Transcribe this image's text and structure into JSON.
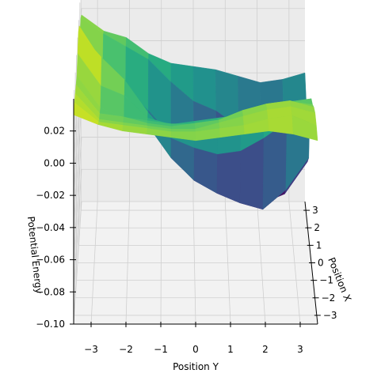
{
  "chart_data": {
    "type": "surface",
    "title": "",
    "xlabel": "Position X",
    "ylabel": "Position Y",
    "zlabel": "Potential Energy",
    "xlim": [
      -3.5,
      3.5
    ],
    "ylim": [
      -3.5,
      3.5
    ],
    "zlim": [
      -0.1,
      0.04
    ],
    "x_ticks": [
      -3,
      -2,
      -1,
      0,
      1,
      2,
      3
    ],
    "y_ticks": [
      -3,
      -2,
      -1,
      0,
      1,
      2,
      3
    ],
    "z_ticks": [
      0.02,
      0.0,
      -0.02,
      -0.04,
      -0.06,
      -0.08,
      -0.1
    ],
    "x_tick_labels": [
      "−3",
      "−2",
      "−1",
      "0",
      "1",
      "2",
      "3"
    ],
    "y_tick_labels": [
      "−3",
      "−2",
      "−1",
      "0",
      "1",
      "2",
      "3"
    ],
    "z_tick_labels": [
      "0.02",
      "0.00",
      "−0.02",
      "−0.04",
      "−0.06",
      "−0.08",
      "−0.10"
    ],
    "colormap": "viridis",
    "grid": true,
    "x": [
      -3.5,
      -2.8,
      -2.1,
      -1.4,
      -0.7,
      0.0,
      0.7,
      1.4,
      2.1,
      2.8,
      3.5
    ],
    "y": [
      -3.5,
      -2.8,
      -2.1,
      -1.4,
      -0.7,
      0.0,
      0.7,
      1.4,
      2.1,
      2.8,
      3.5
    ],
    "z": [
      [
        0.03,
        0.03,
        0.028,
        0.026,
        0.024,
        0.03,
        0.036,
        0.032,
        0.02,
        0.022,
        0.016
      ],
      [
        0.024,
        0.018,
        0.012,
        0.008,
        0.004,
        0.01,
        0.02,
        0.01,
        0.0,
        0.012,
        0.006
      ],
      [
        0.02,
        0.016,
        0.01,
        0.006,
        -0.002,
        0.004,
        0.006,
        -0.01,
        -0.014,
        0.004,
        0.002
      ],
      [
        0.018,
        0.014,
        0.008,
        0.002,
        -0.004,
        -0.01,
        -0.014,
        -0.03,
        -0.028,
        -0.004,
        -0.008
      ],
      [
        0.016,
        0.012,
        0.006,
        0.0,
        -0.006,
        -0.014,
        -0.03,
        -0.05,
        -0.044,
        -0.018,
        -0.014
      ],
      [
        0.014,
        0.012,
        0.006,
        0.002,
        -0.006,
        -0.012,
        -0.036,
        -0.064,
        -0.054,
        -0.03,
        -0.016
      ],
      [
        0.016,
        0.014,
        0.01,
        0.004,
        -0.004,
        -0.01,
        -0.04,
        -0.072,
        -0.06,
        -0.036,
        -0.018
      ],
      [
        0.018,
        0.016,
        0.014,
        0.01,
        0.0,
        -0.008,
        -0.038,
        -0.078,
        -0.072,
        -0.046,
        -0.022
      ],
      [
        0.02,
        0.02,
        0.018,
        0.014,
        0.004,
        -0.004,
        -0.03,
        -0.082,
        -0.086,
        -0.054,
        -0.026
      ],
      [
        0.018,
        0.022,
        0.02,
        0.016,
        0.008,
        0.0,
        -0.02,
        -0.07,
        -0.08,
        -0.046,
        -0.024
      ],
      [
        0.014,
        0.016,
        0.016,
        0.012,
        0.006,
        0.002,
        -0.01,
        -0.05,
        -0.06,
        -0.03,
        -0.02
      ]
    ]
  }
}
